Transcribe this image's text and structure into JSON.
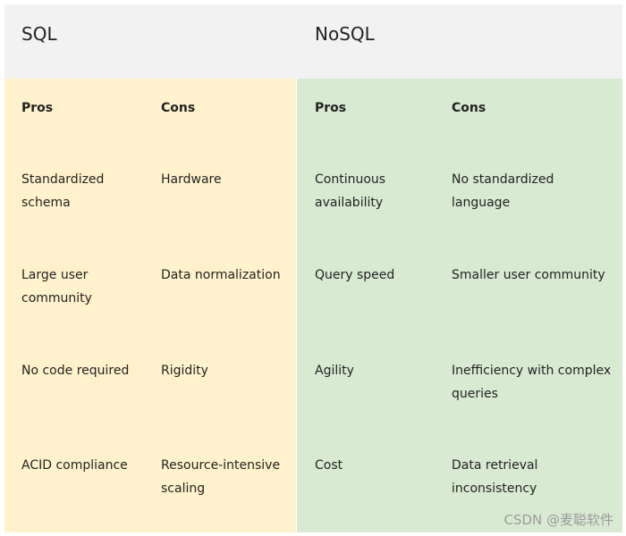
{
  "header": {
    "left": "SQL",
    "right": "NoSQL"
  },
  "table": {
    "columns": [
      "Pros",
      "Cons",
      "Pros",
      "Cons"
    ],
    "rows": [
      [
        [
          "Standardized",
          "schema"
        ],
        [
          "Hardware"
        ],
        [
          "Continuous",
          "availability"
        ],
        [
          "No standardized",
          "language"
        ]
      ],
      [
        [
          "Large user",
          "community"
        ],
        [
          "Data normalization"
        ],
        [
          "Query speed"
        ],
        [
          "Smaller user community"
        ]
      ],
      [
        [
          "No code required"
        ],
        [
          "Rigidity"
        ],
        [
          "Agility"
        ],
        [
          "Inefficiency with complex",
          "queries"
        ]
      ],
      [
        [
          "ACID compliance"
        ],
        [
          "Resource-intensive",
          "scaling"
        ],
        [
          "Cost"
        ],
        [
          "Data retrieval",
          "inconsistency"
        ]
      ]
    ]
  },
  "watermark": "CSDN @麦聪软件"
}
